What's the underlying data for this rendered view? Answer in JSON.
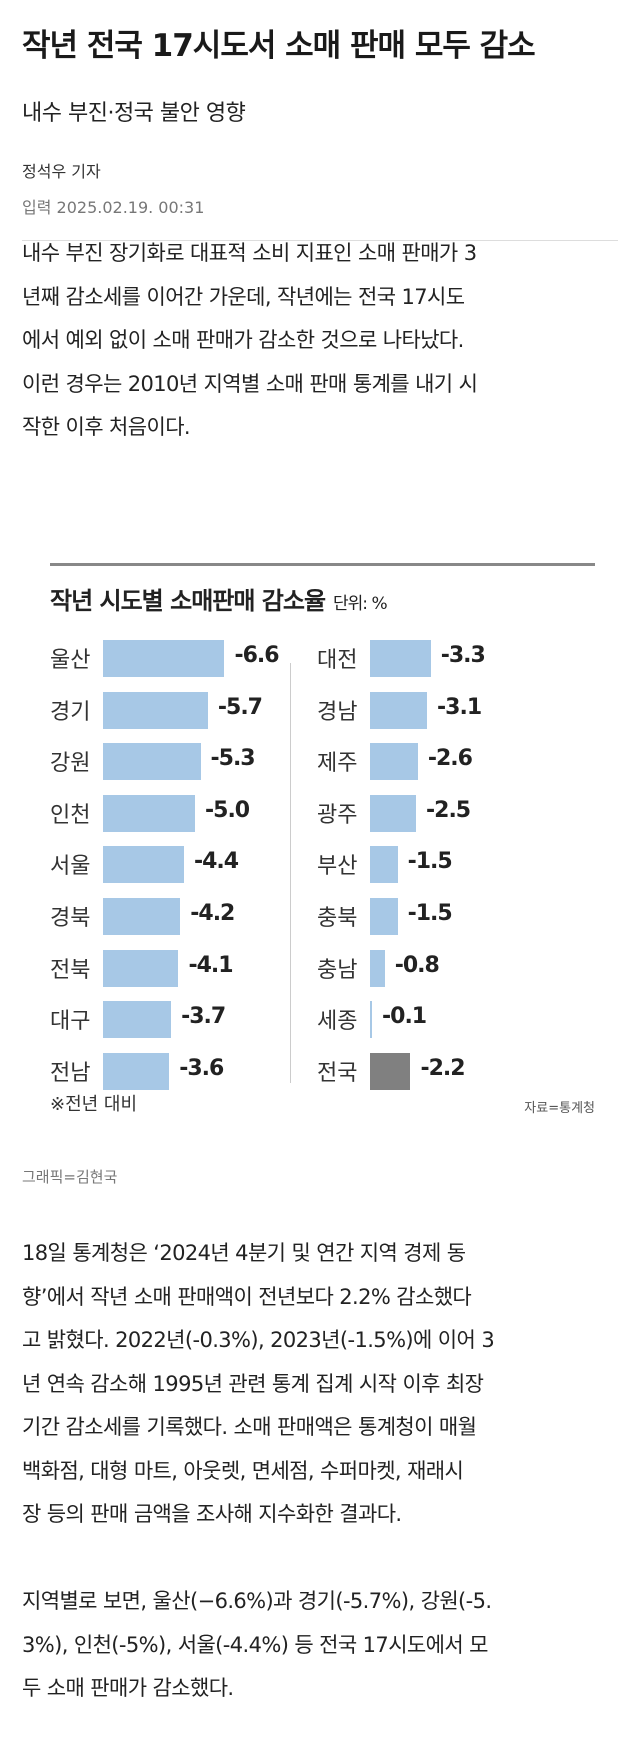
{
  "article": {
    "title": "작년 전국 17시도서 소매 판매 모두 감소",
    "subtitle": "내수 부진·정국 불안 영향",
    "byline": "정석우 기자",
    "date": "입력 2025.02.19. 00:31"
  },
  "paragraphs": [
    [
      "내수 부진 장기화로 대표적 소비 지표인 소매 판매가 3",
      "년째 감소세를 이어간 가운데, 작년에는 전국 17시도",
      "에서 예외 없이 소매 판매가 감소한 것으로 나타났다.",
      "이런 경우는 2010년 지역별 소매 판매 통계를 내기 시",
      "작한 이후 처음이다."
    ],
    [
      "18일 통계청은 ‘2024년 4분기 및 연간 지역 경제 동",
      "향’에서 작년 소매 판매액이 전년보다 2.2% 감소했다",
      "고 밝혔다. 2022년(-0.3%), 2023년(-1.5%)에 이어 3",
      "년 연속 감소해 1995년 관련 통계 집계 시작 이후 최장",
      "기간 감소세를 기록했다. 소매 판매액은 통계청이 매월",
      "백화점, 대형 마트, 아웃렛, 면세점, 수퍼마켓, 재래시",
      "장 등의 판매 금액을 조사해 지수화한 결과다."
    ],
    [
      "지역별로 보면, 울산(−6.6%)과 경기(-5.7%), 강원(-5.",
      "3%), 인천(-5%), 서울(-4.4%) 등 전국 17시도에서 모",
      "두 소매 판매가 감소했다."
    ]
  ],
  "graphic_credit": "그래픽=김현국",
  "chart_data": {
    "type": "bar",
    "orientation": "horizontal",
    "title": "작년 시도별 소매판매 감소율",
    "unit": "단위: %",
    "note": "※전년 대비",
    "source": "자료=통계청",
    "bar_color": "#a7c8e6",
    "highlight_color": "#808080",
    "columns": [
      {
        "categories": [
          "울산",
          "경기",
          "강원",
          "인천",
          "서울",
          "경북",
          "전북",
          "대구",
          "전남"
        ],
        "values": [
          -6.6,
          -5.7,
          -5.3,
          -5.0,
          -4.4,
          -4.2,
          -4.1,
          -3.7,
          -3.6
        ],
        "labels": [
          "-6.6",
          "-5.7",
          "-5.3",
          "-5.0",
          "-4.4",
          "-4.2",
          "-4.1",
          "-3.7",
          "-3.6"
        ]
      },
      {
        "categories": [
          "대전",
          "경남",
          "제주",
          "광주",
          "부산",
          "충북",
          "충남",
          "세종",
          "전국"
        ],
        "values": [
          -3.3,
          -3.1,
          -2.6,
          -2.5,
          -1.5,
          -1.5,
          -0.8,
          -0.1,
          -2.2
        ],
        "labels": [
          "-3.3",
          "-3.1",
          "-2.6",
          "-2.5",
          "-1.5",
          "-1.5",
          "-0.8",
          "-0.1",
          "-2.2"
        ],
        "highlight": [
          "전국"
        ]
      }
    ]
  }
}
